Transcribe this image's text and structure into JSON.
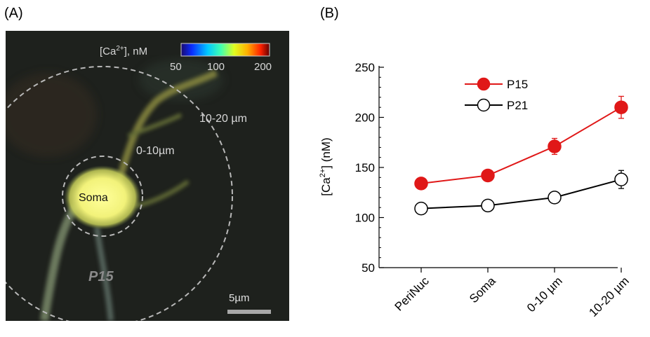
{
  "panels": {
    "a_label": "(A)",
    "b_label": "(B)"
  },
  "image_panel": {
    "colorbar_title_prefix": "[Ca",
    "colorbar_title_sup": "2+",
    "colorbar_title_suffix": "], nM",
    "colorbar_ticks": [
      "50",
      "100",
      "200"
    ],
    "region_labels": {
      "soma": "Soma",
      "inner_ring": "0-10µm",
      "outer_ring": "10-20 µm"
    },
    "age_label": "P15",
    "scale_bar_label": "5µm",
    "colors": {
      "background": "#1e211d",
      "soma_glow": "#f2f27a",
      "ring": "#b8b8b8"
    }
  },
  "chart_data": {
    "type": "line",
    "categories": [
      "PeriNuc",
      "Soma",
      "0-10 µm",
      "10-20 µm"
    ],
    "series": [
      {
        "name": "P15",
        "values": [
          134,
          142,
          171,
          210
        ],
        "errors": [
          0,
          0,
          8,
          11
        ],
        "color": "#e01818",
        "marker": "filled-circle"
      },
      {
        "name": "P21",
        "values": [
          109,
          112,
          120,
          138
        ],
        "errors": [
          0,
          0,
          0,
          9
        ],
        "color": "#000000",
        "marker": "open-circle"
      }
    ],
    "ylabel_prefix": "[Ca",
    "ylabel_sup": "2+",
    "ylabel_suffix": "] (nM)",
    "yticks": [
      50,
      100,
      150,
      200,
      250
    ],
    "ylim": [
      50,
      250
    ],
    "legend_position": "top-left",
    "grid": false
  }
}
